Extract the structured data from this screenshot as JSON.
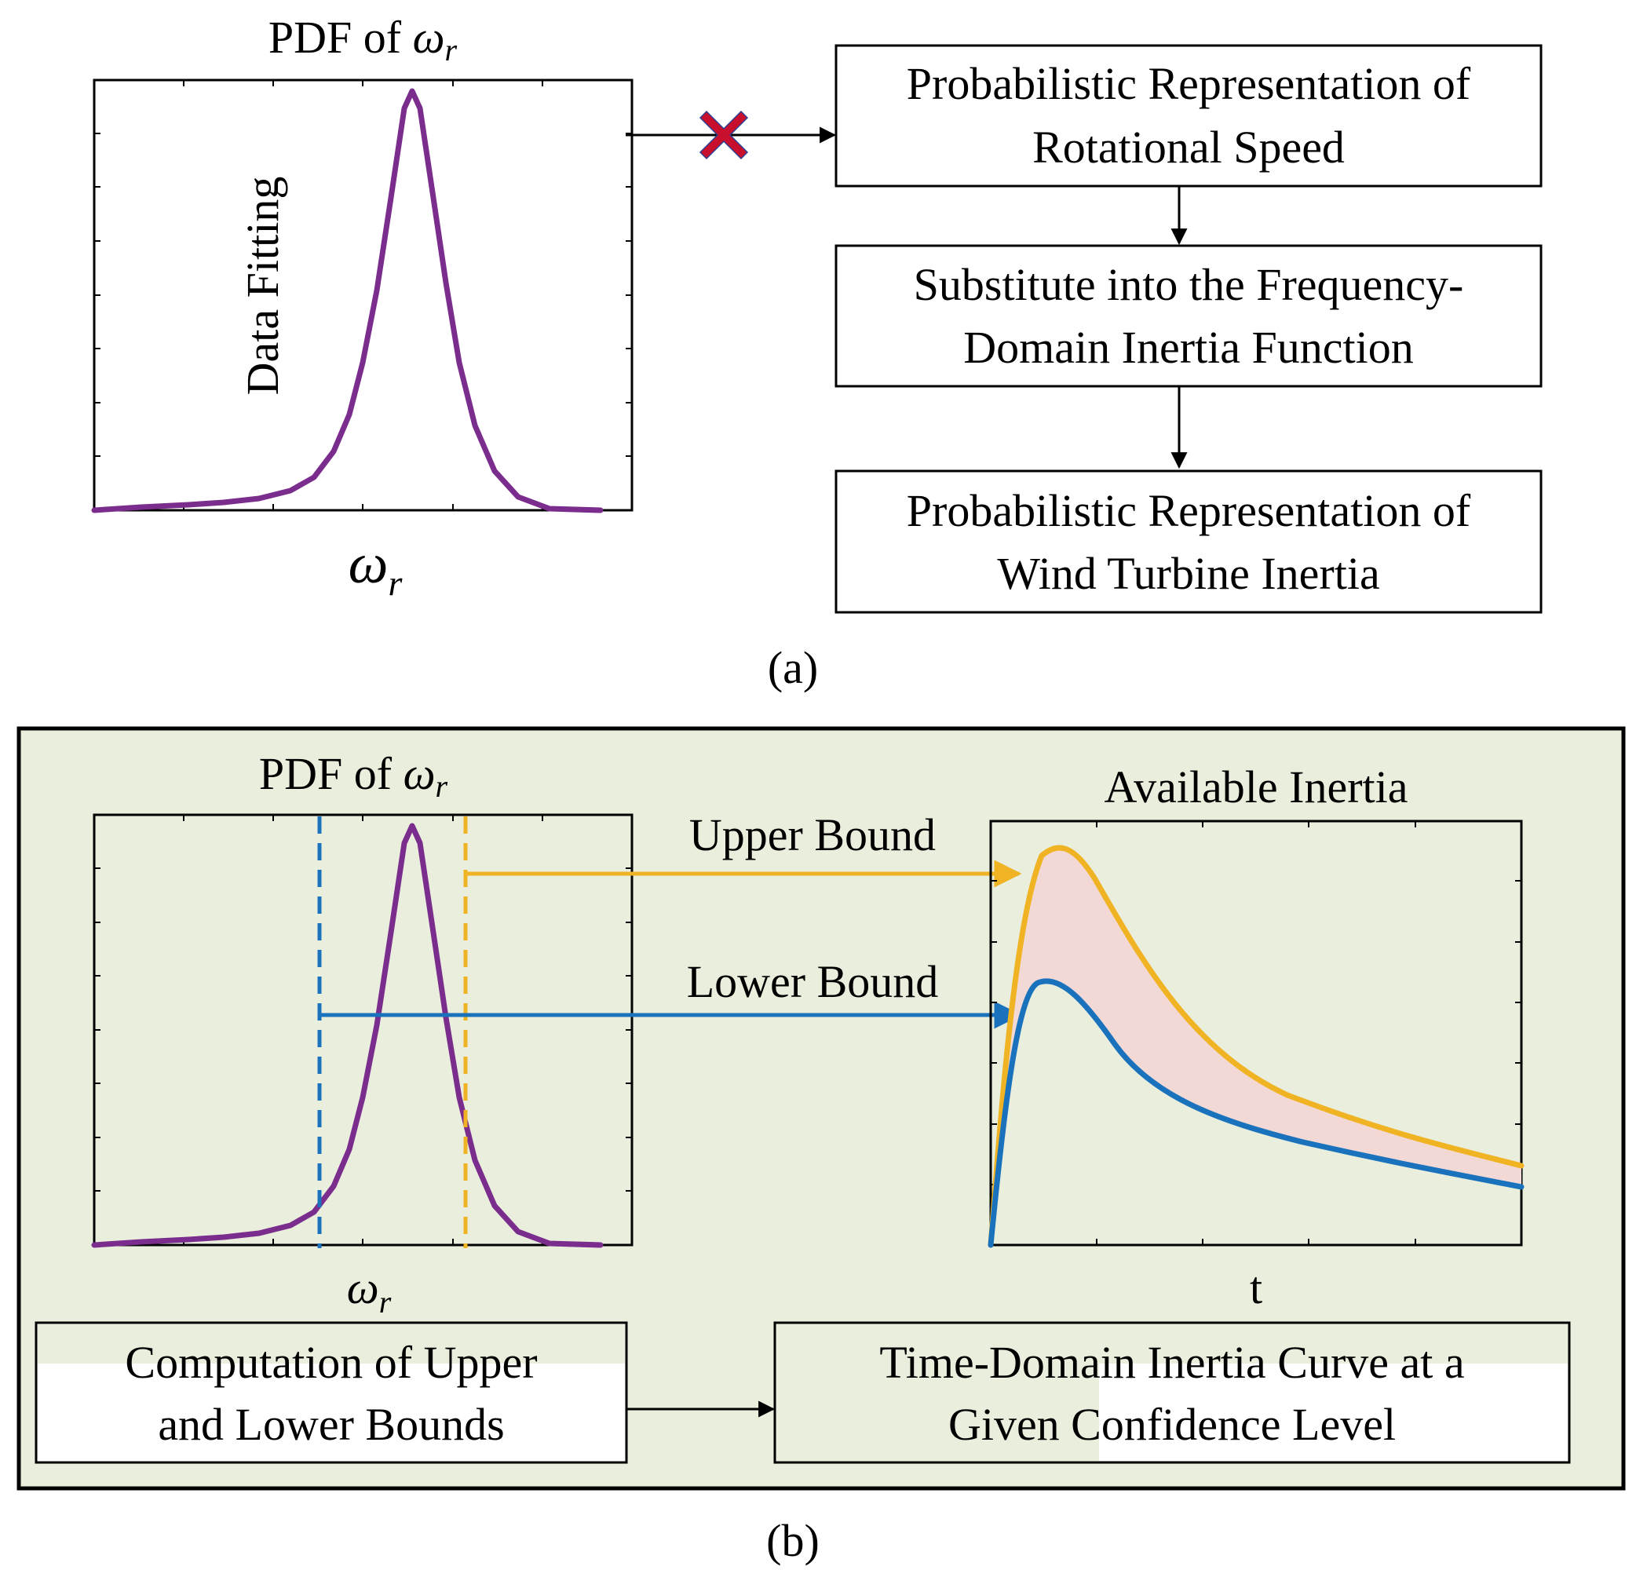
{
  "colors": {
    "purple": "#7B2D8E",
    "orange": "#F0B323",
    "blue": "#1A72BD",
    "panel_b_bg": "#E9EEDD",
    "band_fill": "#F2D9D5",
    "cross": "#C8102E"
  },
  "panel_a": {
    "pdf_title_prefix": "PDF of ",
    "omega_symbol": "ω",
    "omega_subscript": "r",
    "fitting_label": "Data Fitting",
    "blocked_link_icon": "cross-icon",
    "flow_boxes": [
      {
        "line1": "Probabilistic Representation of",
        "line2": "Rotational Speed"
      },
      {
        "line1": "Substitute into the Frequency-",
        "line2": "Domain Inertia Function"
      },
      {
        "line1": "Probabilistic Representation of",
        "line2": "Wind Turbine Inertia"
      }
    ],
    "caption": "(a)"
  },
  "panel_b": {
    "pdf_title_prefix": "PDF of ",
    "omega_symbol": "ω",
    "omega_subscript": "r",
    "upper_label": "Upper Bound",
    "lower_label": "Lower Bound",
    "inertia_title": "Available Inertia",
    "inertia_xlabel": "t",
    "box_left": {
      "line1": "Computation of  Upper",
      "line2": "and Lower Bounds"
    },
    "box_right": {
      "line1": "Time-Domain Inertia Curve at a",
      "line2": "Given Confidence Level"
    },
    "caption": "(b)"
  }
}
